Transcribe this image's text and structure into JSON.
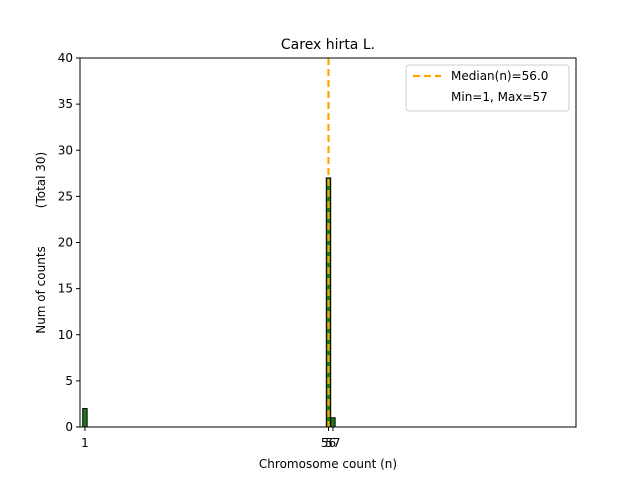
{
  "chart_data": {
    "type": "bar",
    "title": "Carex hirta L.",
    "xlabel": "Chromosome count (n)",
    "ylabel": "Num of counts",
    "ylabel_total": "(Total 30)",
    "xlim": [
      0,
      112
    ],
    "ylim": [
      0,
      40
    ],
    "yticks": [
      0,
      5,
      10,
      15,
      20,
      25,
      30,
      35,
      40
    ],
    "xticks": [
      1,
      56,
      57
    ],
    "bars": [
      {
        "x": 1,
        "count": 2
      },
      {
        "x": 56,
        "count": 27
      },
      {
        "x": 57,
        "count": 1
      }
    ],
    "bar_color": "#1a7a1a",
    "median": 56.0,
    "median_color": "#ffa500",
    "legend": {
      "position": "top-right",
      "entries": [
        "Median(n)=56.0",
        "Min=1, Max=57"
      ]
    }
  }
}
